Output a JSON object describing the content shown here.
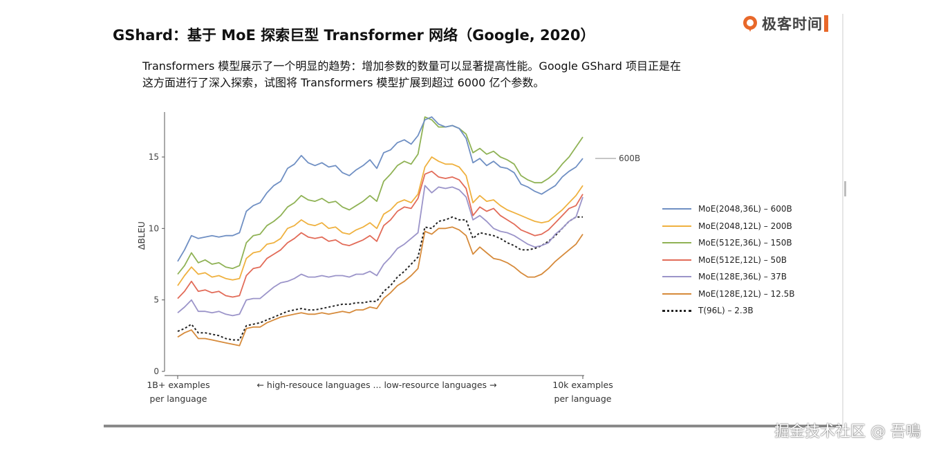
{
  "page": {
    "title": "GShard：基于 MoE 探索巨型 Transformer 网络（Google, 2020）",
    "logo_text": "极客时间",
    "description_line1": "Transformers 模型展示了一个明显的趋势：增加参数的数量可以显著提高性能。Google GShard 项目正是在",
    "description_line2": "这方面进行了深入探索，试图将 Transformers 模型扩展到超过 6000 亿个参数。",
    "watermark": "掘金技术社区 @ 吾鳴"
  },
  "chart_data": {
    "type": "line",
    "title": "",
    "ylabel": "ΔBLEU",
    "ylim": [
      0,
      18
    ],
    "yticks": [
      0,
      5,
      10,
      15
    ],
    "x_captions": {
      "left_line1": "1B+ examples",
      "left_line2": "per language",
      "middle": "← high-resouce languages    ...    low-resource languages →",
      "right_line1": "10k examples",
      "right_line2": "per language"
    },
    "annotation": "600B",
    "annotation_series": 0,
    "series": [
      {
        "name": "MoE(2048,36L) – 600B",
        "color": "#6f8fc3",
        "dash": "",
        "values": [
          7.7,
          8.5,
          9.5,
          9.3,
          9.4,
          9.5,
          9.4,
          9.5,
          9.5,
          9.7,
          11.2,
          11.6,
          11.8,
          12.5,
          13.0,
          13.3,
          14.2,
          14.5,
          15.1,
          14.6,
          14.4,
          14.6,
          14.3,
          14.4,
          13.9,
          13.7,
          14.1,
          14.4,
          14.8,
          14.2,
          15.3,
          15.5,
          16.0,
          16.2,
          15.9,
          16.5,
          17.6,
          17.8,
          17.3,
          17.1,
          17.2,
          17.0,
          16.3,
          14.6,
          14.9,
          14.4,
          14.7,
          14.3,
          14.2,
          13.9,
          13.1,
          12.9,
          12.6,
          12.4,
          12.7,
          13.0,
          13.6,
          14.0,
          14.3,
          14.9
        ]
      },
      {
        "name": "MoE(2048,12L) – 200B",
        "color": "#efb13f",
        "dash": "",
        "values": [
          6.0,
          6.7,
          7.3,
          6.8,
          6.9,
          6.6,
          6.7,
          6.5,
          6.4,
          6.5,
          7.9,
          8.3,
          8.4,
          8.9,
          9.0,
          9.3,
          10.0,
          10.2,
          10.6,
          10.3,
          10.2,
          10.4,
          10.0,
          10.1,
          9.7,
          9.6,
          9.9,
          10.1,
          10.4,
          10.0,
          11.0,
          11.3,
          11.8,
          12.0,
          11.8,
          12.4,
          14.3,
          15.0,
          14.7,
          14.5,
          14.5,
          14.3,
          13.7,
          11.8,
          12.3,
          11.9,
          12.0,
          11.6,
          11.3,
          11.1,
          10.9,
          10.7,
          10.5,
          10.4,
          10.5,
          10.9,
          11.3,
          11.8,
          12.3,
          13.0
        ]
      },
      {
        "name": "MoE(512E,36L) – 150B",
        "color": "#8fb255",
        "dash": "",
        "values": [
          6.8,
          7.4,
          8.3,
          7.6,
          7.8,
          7.5,
          7.6,
          7.3,
          7.2,
          7.4,
          9.0,
          9.5,
          9.6,
          10.2,
          10.5,
          10.9,
          11.5,
          11.8,
          12.3,
          12.0,
          11.9,
          12.1,
          11.8,
          11.9,
          11.5,
          11.3,
          11.6,
          11.9,
          12.3,
          11.9,
          13.3,
          13.8,
          14.4,
          14.7,
          14.5,
          15.2,
          17.8,
          17.6,
          17.1,
          17.1,
          17.2,
          17.0,
          16.6,
          15.3,
          15.6,
          15.2,
          15.4,
          15.0,
          14.8,
          14.5,
          13.7,
          13.4,
          13.2,
          13.2,
          13.5,
          13.9,
          14.5,
          15.0,
          15.7,
          16.4
        ]
      },
      {
        "name": "MoE(512E,12L) – 50B",
        "color": "#e26b58",
        "dash": "",
        "values": [
          5.1,
          5.6,
          6.3,
          5.6,
          5.7,
          5.5,
          5.6,
          5.3,
          5.2,
          5.3,
          6.7,
          7.2,
          7.3,
          7.9,
          8.2,
          8.5,
          9.0,
          9.3,
          9.7,
          9.4,
          9.3,
          9.4,
          9.1,
          9.2,
          8.9,
          8.8,
          9.0,
          9.2,
          9.5,
          9.1,
          10.2,
          10.6,
          11.2,
          11.5,
          11.4,
          12.1,
          13.8,
          14.0,
          13.6,
          13.5,
          13.6,
          13.4,
          12.8,
          10.9,
          11.5,
          11.2,
          11.4,
          10.9,
          10.6,
          10.3,
          9.9,
          9.7,
          9.5,
          9.6,
          9.9,
          10.4,
          10.9,
          11.4,
          11.6,
          12.4
        ]
      },
      {
        "name": "MoE(128E,36L) – 37B",
        "color": "#9b94c9",
        "dash": "",
        "values": [
          4.1,
          4.5,
          5.0,
          4.2,
          4.2,
          4.1,
          4.2,
          4.0,
          3.9,
          4.0,
          5.0,
          5.1,
          5.1,
          5.5,
          5.9,
          6.2,
          6.3,
          6.5,
          6.8,
          6.6,
          6.6,
          6.7,
          6.6,
          6.7,
          6.7,
          6.6,
          6.8,
          6.8,
          7.0,
          6.7,
          7.5,
          8.0,
          8.6,
          8.9,
          9.3,
          9.7,
          13.0,
          12.5,
          12.9,
          12.8,
          12.9,
          12.7,
          12.2,
          10.6,
          10.9,
          10.5,
          10.0,
          9.8,
          9.7,
          9.5,
          9.2,
          8.9,
          8.7,
          8.8,
          9.0,
          9.6,
          10.0,
          10.5,
          10.8,
          12.2
        ]
      },
      {
        "name": "MoE(128E,12L) – 12.5B",
        "color": "#d68a3a",
        "dash": "",
        "values": [
          2.4,
          2.7,
          2.9,
          2.3,
          2.3,
          2.2,
          2.1,
          2.0,
          1.9,
          1.8,
          3.0,
          3.1,
          3.1,
          3.4,
          3.6,
          3.8,
          3.9,
          4.0,
          4.1,
          4.0,
          4.0,
          4.1,
          4.0,
          4.1,
          4.2,
          4.1,
          4.3,
          4.3,
          4.5,
          4.4,
          5.1,
          5.5,
          6.0,
          6.3,
          6.7,
          7.2,
          9.8,
          9.6,
          10.0,
          10.0,
          10.1,
          9.9,
          9.5,
          8.2,
          8.7,
          8.3,
          7.9,
          7.8,
          7.6,
          7.3,
          6.9,
          6.6,
          6.6,
          6.8,
          7.2,
          7.7,
          8.1,
          8.5,
          8.9,
          9.6
        ]
      },
      {
        "name": "T(96L) – 2.3B",
        "color": "#222222",
        "dash": "3,3",
        "values": [
          2.8,
          3.0,
          3.3,
          2.7,
          2.7,
          2.6,
          2.5,
          2.3,
          2.2,
          2.2,
          3.2,
          3.3,
          3.4,
          3.6,
          3.8,
          4.0,
          4.2,
          4.3,
          4.4,
          4.3,
          4.3,
          4.4,
          4.5,
          4.6,
          4.7,
          4.7,
          4.8,
          4.8,
          4.9,
          4.9,
          5.6,
          6.0,
          6.6,
          7.0,
          7.5,
          8.0,
          10.1,
          10.0,
          10.5,
          10.6,
          10.8,
          10.6,
          10.6,
          9.3,
          9.7,
          9.6,
          9.5,
          9.3,
          9.0,
          8.8,
          8.5,
          8.5,
          8.6,
          8.8,
          9.1,
          9.5,
          10.0,
          10.5,
          10.8,
          10.8
        ]
      }
    ]
  }
}
